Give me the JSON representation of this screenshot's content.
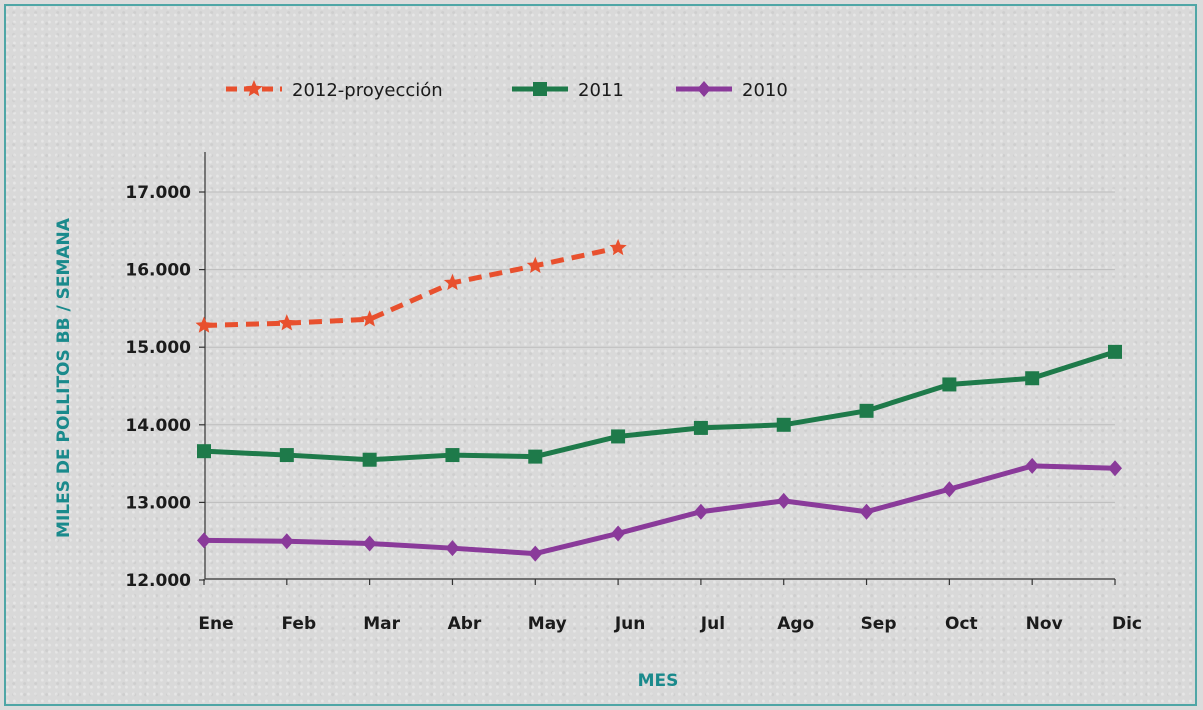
{
  "chart_data": {
    "type": "line",
    "title": "",
    "xlabel": "MES",
    "ylabel": "MILES DE POLLITOS BB / SEMANA",
    "categories": [
      "Ene",
      "Feb",
      "Mar",
      "Abr",
      "May",
      "Jun",
      "Jul",
      "Ago",
      "Sep",
      "Oct",
      "Nov",
      "Dic"
    ],
    "ylim": [
      12000,
      17500
    ],
    "yticks": [
      12000,
      13000,
      14000,
      15000,
      16000,
      17000
    ],
    "ytick_labels": [
      "12.000",
      "13.000",
      "14.000",
      "15.000",
      "16.000",
      "17.000"
    ],
    "grid": true,
    "legend_position": "top-left",
    "series": [
      {
        "name": "2012-proyección",
        "color": "#e8502e",
        "line_style": "dashed",
        "marker": "star",
        "values": [
          15280,
          15310,
          15360,
          15830,
          16050,
          16280,
          null,
          null,
          null,
          null,
          null,
          null
        ]
      },
      {
        "name": "2011",
        "color": "#1e7a4a",
        "line_style": "solid",
        "marker": "square",
        "values": [
          13660,
          13610,
          13550,
          13610,
          13590,
          13850,
          13960,
          14000,
          14180,
          14520,
          14600,
          14940
        ]
      },
      {
        "name": "2010",
        "color": "#8a3a9a",
        "line_style": "solid",
        "marker": "diamond",
        "values": [
          12510,
          12500,
          12470,
          12410,
          12340,
          12600,
          12880,
          13020,
          12880,
          13170,
          13470,
          13440
        ]
      }
    ]
  }
}
